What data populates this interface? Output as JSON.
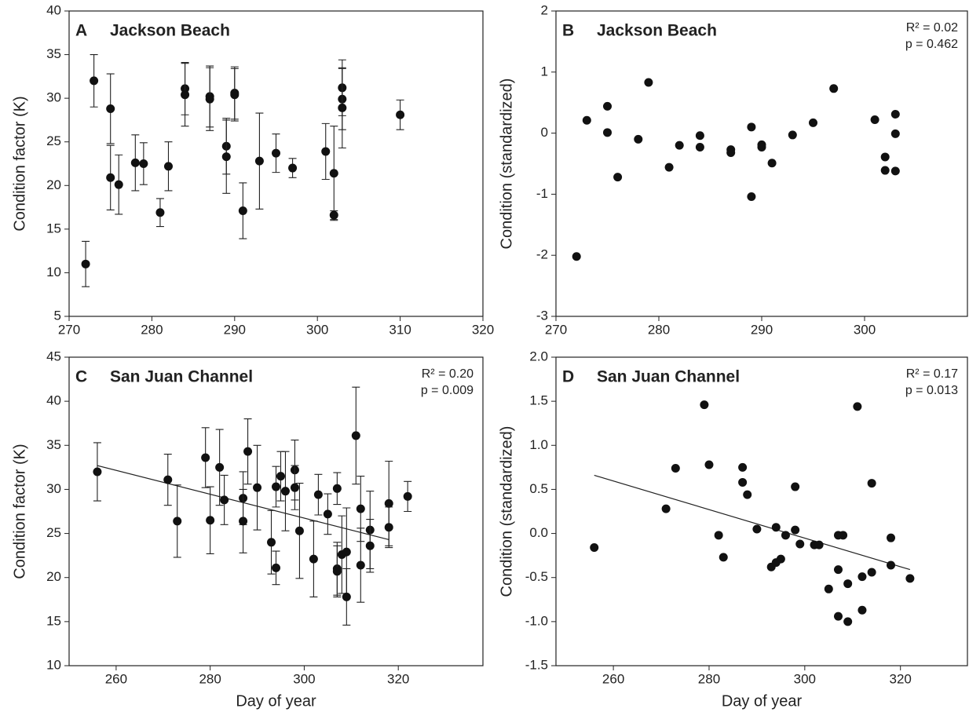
{
  "chart_data": [
    {
      "type": "scatter",
      "letter": "A",
      "title": "Jackson Beach",
      "ylabel": "Condition factor (K)",
      "x": [
        272,
        273,
        275,
        275,
        276,
        278,
        279,
        281,
        282,
        284,
        284,
        287,
        287,
        289,
        289,
        290,
        290,
        291,
        293,
        295,
        297,
        301,
        302,
        302,
        303,
        303,
        303,
        310
      ],
      "y": [
        11.0,
        32.0,
        28.8,
        20.9,
        20.1,
        22.6,
        22.5,
        16.9,
        22.2,
        31.1,
        30.4,
        30.2,
        29.9,
        24.5,
        23.3,
        30.6,
        30.4,
        17.1,
        22.8,
        23.7,
        22.0,
        23.9,
        21.4,
        16.6,
        31.2,
        29.9,
        28.9,
        28.1
      ],
      "errors": [
        2.6,
        3.0,
        4.0,
        3.7,
        3.4,
        3.2,
        2.4,
        1.6,
        2.8,
        3.0,
        3.6,
        3.5,
        3.6,
        3.2,
        4.2,
        3.0,
        3.0,
        3.2,
        5.5,
        2.2,
        1.1,
        3.2,
        5.4,
        0.5,
        3.2,
        3.5,
        4.6,
        1.7
      ],
      "xlim": [
        270,
        320
      ],
      "ylim": [
        5,
        40
      ],
      "xticks": [
        270,
        280,
        290,
        300,
        310,
        320
      ],
      "yticks": [
        5,
        10,
        15,
        20,
        25,
        30,
        35,
        40
      ]
    },
    {
      "type": "scatter",
      "letter": "B",
      "title": "Jackson Beach",
      "ylabel": "Condition (standardized)",
      "annotations": [
        "R² = 0.02",
        "p = 0.462"
      ],
      "x": [
        272,
        273,
        275,
        275,
        276,
        278,
        279,
        281,
        282,
        284,
        284,
        287,
        287,
        289,
        289,
        290,
        290,
        291,
        293,
        295,
        297,
        301,
        302,
        302,
        303,
        303,
        303
      ],
      "y": [
        -2.02,
        0.21,
        0.44,
        0.01,
        -0.72,
        -0.1,
        0.83,
        -0.56,
        -0.2,
        -0.04,
        -0.23,
        -0.27,
        -0.32,
        0.1,
        -1.04,
        -0.19,
        -0.23,
        -0.49,
        -0.03,
        0.17,
        0.73,
        0.22,
        -0.39,
        -0.61,
        0.31,
        -0.01,
        -0.62
      ],
      "xlim": [
        270,
        310
      ],
      "ylim": [
        -3,
        2
      ],
      "xticks": [
        270,
        280,
        290,
        300
      ],
      "yticks": [
        -3,
        -2,
        -1,
        0,
        1,
        2
      ]
    },
    {
      "type": "scatter",
      "letter": "C",
      "title": "San Juan Channel",
      "ylabel": "Condition factor (K)",
      "xlabel": "Day of year",
      "annotations": [
        "R² = 0.20",
        "p = 0.009"
      ],
      "x": [
        256,
        271,
        273,
        279,
        280,
        282,
        283,
        287,
        287,
        288,
        290,
        293,
        294,
        294,
        295,
        296,
        298,
        298,
        299,
        302,
        303,
        305,
        307,
        307,
        307,
        308,
        309,
        309,
        311,
        312,
        312,
        314,
        314,
        318,
        318,
        322
      ],
      "y": [
        32.0,
        31.1,
        26.4,
        33.6,
        26.5,
        32.5,
        28.8,
        29.0,
        26.4,
        34.3,
        30.2,
        24.0,
        30.3,
        21.1,
        31.5,
        29.8,
        32.2,
        30.2,
        25.3,
        22.1,
        29.4,
        27.2,
        30.1,
        21.0,
        20.7,
        22.6,
        22.9,
        17.8,
        36.1,
        27.8,
        21.4,
        25.4,
        23.6,
        28.4,
        25.7,
        29.2
      ],
      "errors": [
        3.3,
        2.9,
        4.1,
        3.4,
        3.8,
        4.3,
        2.8,
        3.0,
        3.6,
        3.7,
        4.8,
        3.6,
        2.3,
        1.9,
        2.8,
        4.5,
        3.4,
        2.5,
        5.4,
        4.3,
        2.3,
        2.3,
        1.8,
        3.0,
        2.9,
        4.4,
        5.0,
        3.2,
        5.5,
        3.7,
        4.2,
        4.4,
        3.0,
        4.8,
        2.3,
        1.7
      ],
      "trendline": {
        "x": [
          256,
          318
        ],
        "y": [
          32.7,
          24.3
        ]
      },
      "xlim": [
        250,
        338
      ],
      "ylim": [
        10,
        45
      ],
      "xticks": [
        260,
        280,
        300,
        320
      ],
      "yticks": [
        10,
        15,
        20,
        25,
        30,
        35,
        40,
        45
      ]
    },
    {
      "type": "scatter",
      "letter": "D",
      "title": "San Juan Channel",
      "ylabel": "Condition (standardized)",
      "xlabel": "Day of year",
      "annotations": [
        "R² = 0.17",
        "p = 0.013"
      ],
      "x": [
        256,
        271,
        273,
        279,
        280,
        282,
        283,
        287,
        287,
        288,
        290,
        293,
        294,
        294,
        295,
        296,
        298,
        298,
        299,
        302,
        303,
        305,
        307,
        307,
        307,
        308,
        309,
        309,
        311,
        312,
        312,
        314,
        314,
        318,
        318,
        322
      ],
      "y": [
        -0.16,
        0.28,
        0.74,
        1.46,
        0.78,
        -0.02,
        -0.27,
        0.75,
        0.58,
        0.44,
        0.05,
        -0.38,
        0.07,
        -0.33,
        -0.29,
        -0.02,
        0.53,
        0.04,
        -0.12,
        -0.13,
        -0.13,
        -0.63,
        -0.02,
        -0.41,
        -0.94,
        -0.02,
        -0.57,
        -1.0,
        1.44,
        -0.49,
        -0.87,
        0.57,
        -0.44,
        -0.05,
        -0.36,
        -0.51
      ],
      "trendline": {
        "x": [
          256,
          322
        ],
        "y": [
          0.66,
          -0.41
        ]
      },
      "xlim": [
        248,
        334
      ],
      "ylim": [
        -1.5,
        2.0
      ],
      "xticks": [
        260,
        280,
        300,
        320
      ],
      "yticks": [
        -1.5,
        {
          "value": -1,
          "label": "-1.0"
        },
        -0.5,
        {
          "value": 0,
          "label": "0.0"
        },
        0.5,
        {
          "value": 1,
          "label": "1.0"
        },
        1.5,
        {
          "value": 2,
          "label": "2.0"
        }
      ]
    }
  ]
}
